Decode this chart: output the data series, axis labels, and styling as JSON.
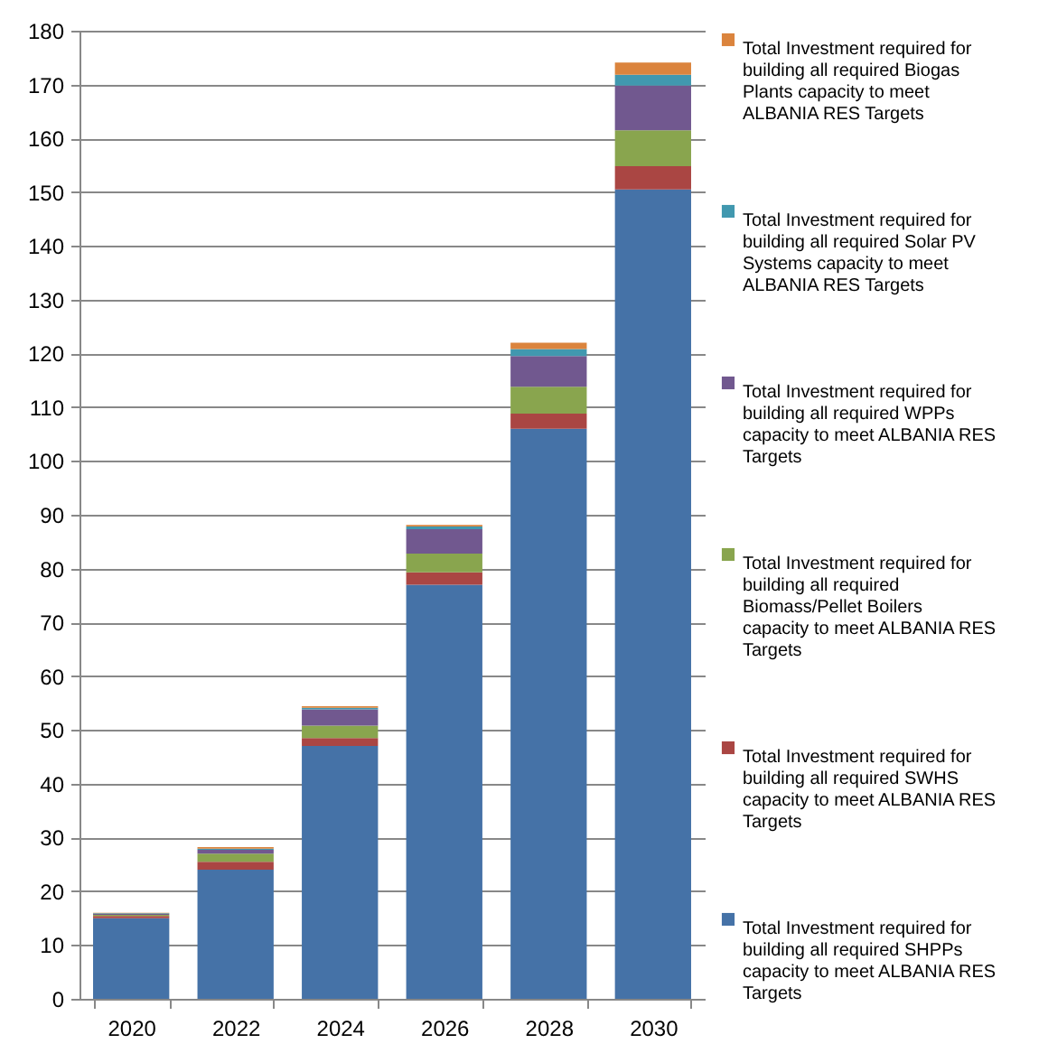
{
  "chart_data": {
    "type": "bar",
    "stacked": true,
    "categories": [
      "2020",
      "2022",
      "2024",
      "2026",
      "2028",
      "2030"
    ],
    "series": [
      {
        "name": "Total Investment required for building all required SHPPs capacity to meet ALBANIA RES Targets",
        "color": "#4572a7",
        "values": [
          15,
          24,
          47,
          77,
          106,
          150.5
        ]
      },
      {
        "name": "Total Investment required for building all required SWHS capacity to meet ALBANIA RES Targets",
        "color": "#aa4643",
        "values": [
          0.4,
          1.5,
          1.5,
          2.3,
          2.8,
          4.3
        ]
      },
      {
        "name": "Total Investment required for building all required Biomass/Pellet Boilers capacity to meet ALBANIA RES Targets",
        "color": "#89a54e",
        "values": [
          0.2,
          1.5,
          2.3,
          3.5,
          5,
          6.7
        ]
      },
      {
        "name": "Total Investment required for building all required WPPs capacity to meet ALBANIA RES Targets",
        "color": "#71588f",
        "values": [
          0.2,
          0.7,
          3,
          4.5,
          5.7,
          8.3
        ]
      },
      {
        "name": "Total Investment required for building all required Solar PV Systems capacity to meet ALBANIA RES Targets",
        "color": "#4198af",
        "values": [
          0.1,
          0.2,
          0.3,
          0.5,
          1.3,
          2
        ]
      },
      {
        "name": "Total Investment required for building all required Biogas Plants capacity to meet ALBANIA RES Targets",
        "color": "#db843d",
        "values": [
          0.1,
          0.3,
          0.3,
          0.3,
          1.2,
          2.3
        ]
      }
    ],
    "ylim": [
      0,
      180
    ],
    "yticks": [
      0,
      10,
      20,
      30,
      40,
      50,
      60,
      70,
      80,
      90,
      100,
      110,
      120,
      130,
      140,
      150,
      160,
      170,
      180
    ],
    "grid": "y",
    "legend": "right"
  }
}
